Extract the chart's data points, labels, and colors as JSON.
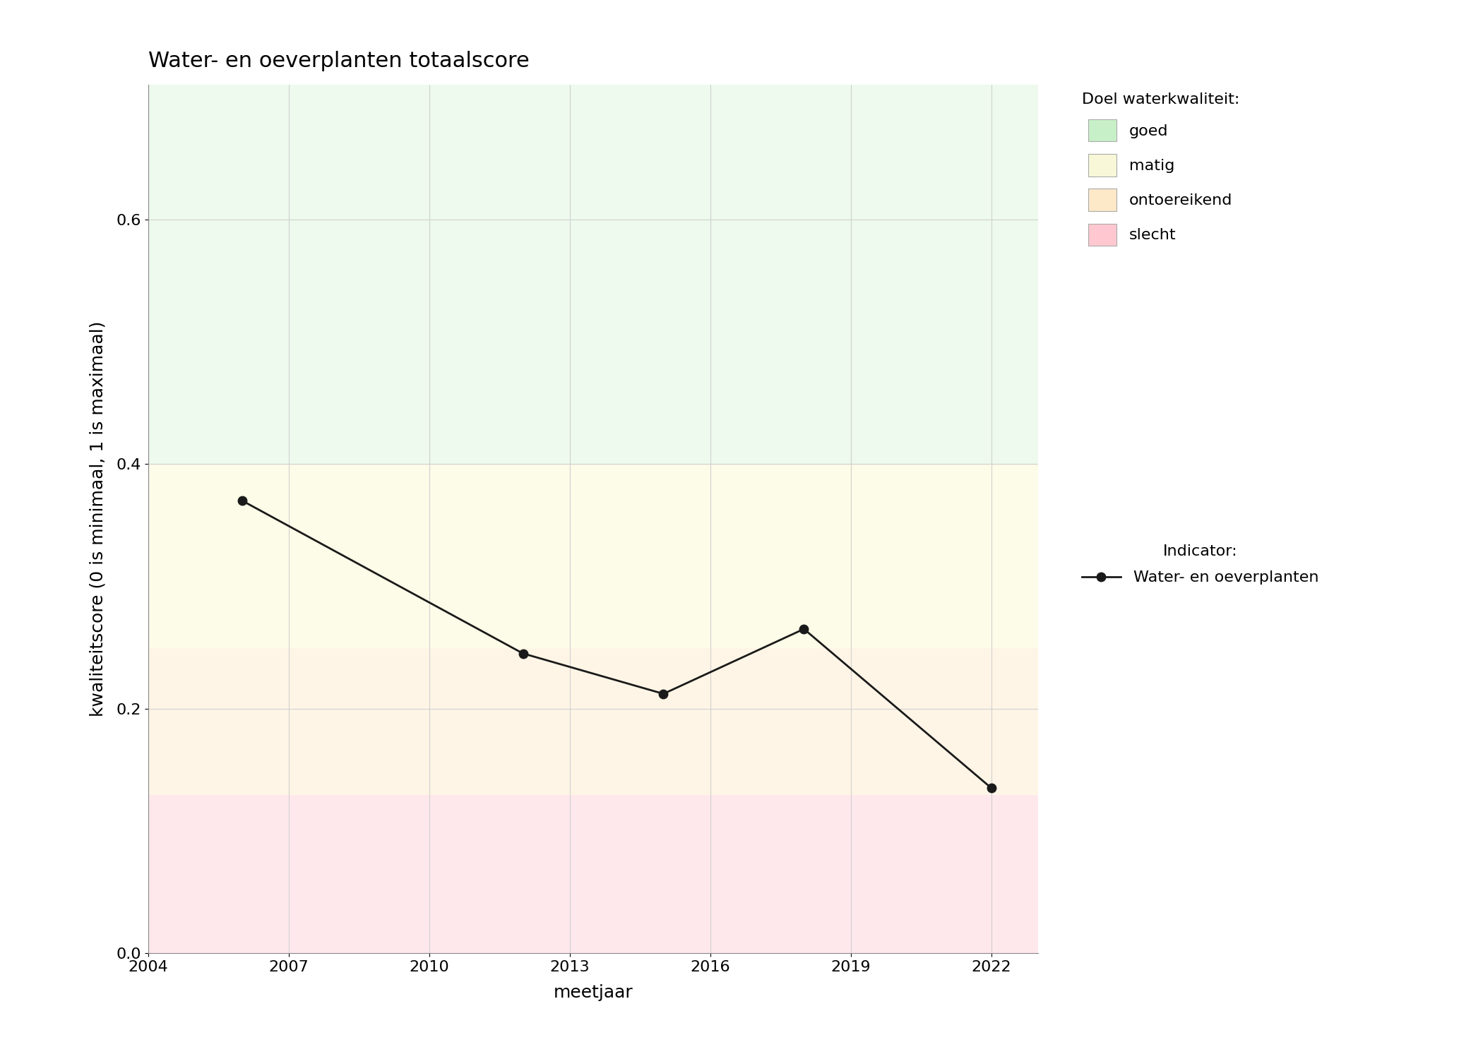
{
  "title": "Water- en oeverplanten totaalscore",
  "xlabel": "meetjaar",
  "ylabel": "kwaliteitscore (0 is minimaal, 1 is maximaal)",
  "xlim": [
    2004,
    2023
  ],
  "ylim": [
    0,
    0.71
  ],
  "xticks": [
    2004,
    2007,
    2010,
    2013,
    2016,
    2019,
    2022
  ],
  "yticks": [
    0.0,
    0.2,
    0.4,
    0.6
  ],
  "years": [
    2006,
    2012,
    2015,
    2018,
    2022
  ],
  "values": [
    0.37,
    0.245,
    0.212,
    0.265,
    0.135
  ],
  "zones": [
    {
      "ymin": 0.0,
      "ymax": 0.13,
      "color": "#FFE8EC",
      "label": "slecht"
    },
    {
      "ymin": 0.13,
      "ymax": 0.25,
      "color": "#FFF5E6",
      "label": "ontoereikend"
    },
    {
      "ymin": 0.25,
      "ymax": 0.4,
      "color": "#FDFCE8",
      "label": "matig"
    },
    {
      "ymin": 0.4,
      "ymax": 0.71,
      "color": "#EDFAED",
      "label": "goed"
    }
  ],
  "legend_title_quality": "Doel waterkwaliteit:",
  "legend_title_indicator": "Indicator:",
  "legend_indicator_label": "Water- en oeverplanten",
  "line_color": "#1a1a1a",
  "marker": "o",
  "markersize": 9,
  "linewidth": 2,
  "background_color": "#ffffff",
  "grid_color": "#d0d0d0",
  "title_fontsize": 22,
  "label_fontsize": 18,
  "tick_fontsize": 16,
  "legend_fontsize": 16,
  "legend_patch_colors": [
    "#c8f0c8",
    "#f8f8d8",
    "#fde8c8",
    "#ffc8d0"
  ]
}
